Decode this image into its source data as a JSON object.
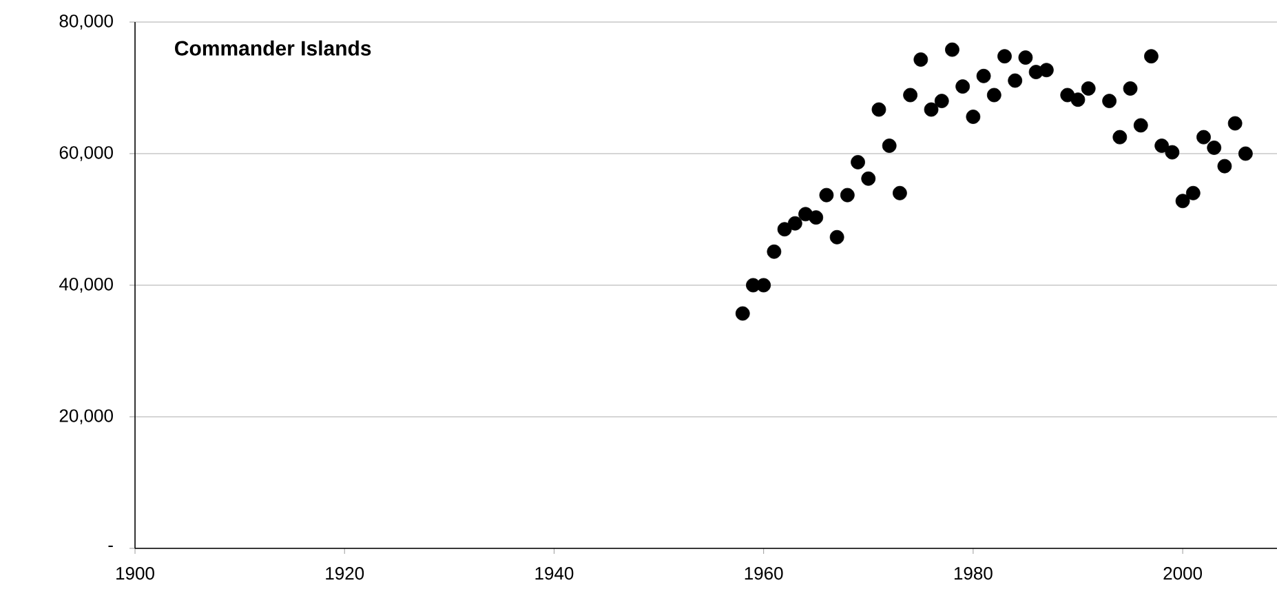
{
  "chart_data": {
    "type": "scatter",
    "title": "Commander Islands",
    "x": [
      1958,
      1959,
      1960,
      1961,
      1962,
      1963,
      1964,
      1965,
      1966,
      1967,
      1968,
      1969,
      1970,
      1971,
      1972,
      1973,
      1974,
      1975,
      1976,
      1977,
      1978,
      1979,
      1980,
      1981,
      1982,
      1983,
      1984,
      1985,
      1986,
      1987,
      1989,
      1990,
      1991,
      1993,
      1994,
      1995,
      1996,
      1997,
      1998,
      1999,
      2000,
      2001,
      2002,
      2003,
      2004,
      2005,
      2006
    ],
    "series": [
      {
        "color": "#000000",
        "values": [
          35700,
          40000,
          40000,
          45100,
          48500,
          49400,
          50800,
          50300,
          53700,
          47300,
          53700,
          58700,
          56200,
          66700,
          61200,
          54000,
          68900,
          74300,
          66700,
          68000,
          75800,
          70200,
          65600,
          71800,
          68900,
          74800,
          71100,
          74600,
          72400,
          72700,
          68900,
          68200,
          69900,
          68000,
          62500,
          69900,
          64300,
          74800,
          61200,
          60200,
          52800,
          54000,
          62500,
          60900,
          58100,
          64600,
          60000
        ]
      }
    ],
    "xlim": [
      1900,
      2009
    ],
    "xticks": [
      1900,
      1920,
      1940,
      1960,
      1980,
      2000
    ],
    "ylim": [
      0,
      80000
    ],
    "yticks": [
      {
        "value": 0,
        "label": "-"
      },
      {
        "value": 20000,
        "label": "20,000"
      },
      {
        "value": 40000,
        "label": "40,000"
      },
      {
        "value": 60000,
        "label": "60,000"
      },
      {
        "value": 80000,
        "label": "80,000"
      }
    ],
    "grid": "y",
    "marker": "circle"
  }
}
